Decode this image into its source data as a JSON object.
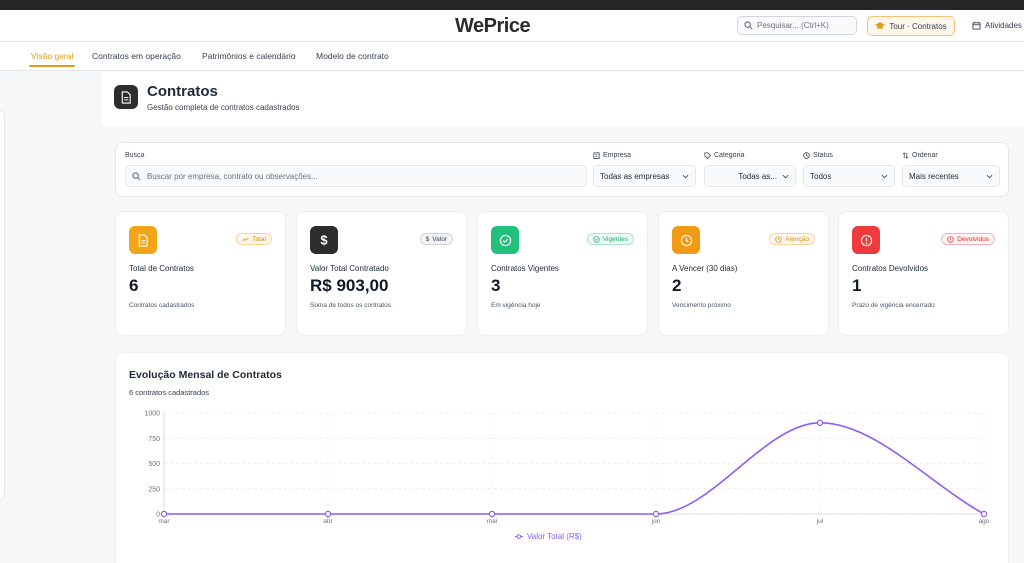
{
  "app": {
    "logo": "WePrice"
  },
  "header": {
    "search_placeholder": "Pesquisar... (Ctrl+K)",
    "tour_label": "Tour · Contratos",
    "activities_label": "Atividades"
  },
  "nav": {
    "tabs": [
      {
        "label": "Visão geral",
        "active": true
      },
      {
        "label": "Contratos em operação",
        "active": false
      },
      {
        "label": "Patrimônios e calendário",
        "active": false
      },
      {
        "label": "Modelo de contrato",
        "active": false
      }
    ]
  },
  "page": {
    "title": "Contratos",
    "subtitle": "Gestão completa de contratos cadastrados"
  },
  "filters": {
    "search": {
      "label": "Busca",
      "placeholder": "Buscar por empresa, contrato ou observações..."
    },
    "company": {
      "label": "Empresa",
      "value": "Todas as empresas"
    },
    "category": {
      "label": "Categoria",
      "value": "Todas as..."
    },
    "status": {
      "label": "Status",
      "value": "Todos"
    },
    "order": {
      "label": "Ordenar",
      "value": "Mais recentes"
    }
  },
  "cards": [
    {
      "badge": "Total",
      "label": "Total de Contratos",
      "value": "6",
      "desc": "Contratos cadastrados",
      "color": "#f2a516",
      "icon": "document-icon"
    },
    {
      "badge": "Valor",
      "label": "Valor Total Contratado",
      "value": "R$ 903,00",
      "desc": "Soma de todos os contratos",
      "color": "#2d2d2d",
      "icon": "dollar-icon"
    },
    {
      "badge": "Vigentes",
      "label": "Contratos Vigentes",
      "value": "3",
      "desc": "Em vigência hoje",
      "color": "#22c07a",
      "icon": "check-circle-icon"
    },
    {
      "badge": "Atenção",
      "label": "A Vencer (30 dias)",
      "value": "2",
      "desc": "Vencimento próximo",
      "color": "#f29a16",
      "icon": "clock-icon"
    },
    {
      "badge": "Devolvidos",
      "label": "Contratos Devolvidos",
      "value": "1",
      "desc": "Prazo de vigência encerrado",
      "color": "#ef3b3b",
      "icon": "alert-circle-icon"
    }
  ],
  "chart": {
    "title": "Evolução Mensal de Contratos",
    "subtitle": "6 contratos cadastrados"
  },
  "chart_data": {
    "type": "line",
    "x": [
      "mar",
      "abr",
      "mai",
      "jun",
      "jul",
      "ago"
    ],
    "series": [
      {
        "name": "Valor Total (R$)",
        "values": [
          0,
          0,
          0,
          0,
          903,
          0
        ],
        "color": "#8b5cf6"
      }
    ],
    "yticks": [
      0,
      250,
      500,
      750,
      1000
    ],
    "ylim": [
      0,
      1000
    ],
    "grid": true,
    "legend": "bottom-center"
  }
}
